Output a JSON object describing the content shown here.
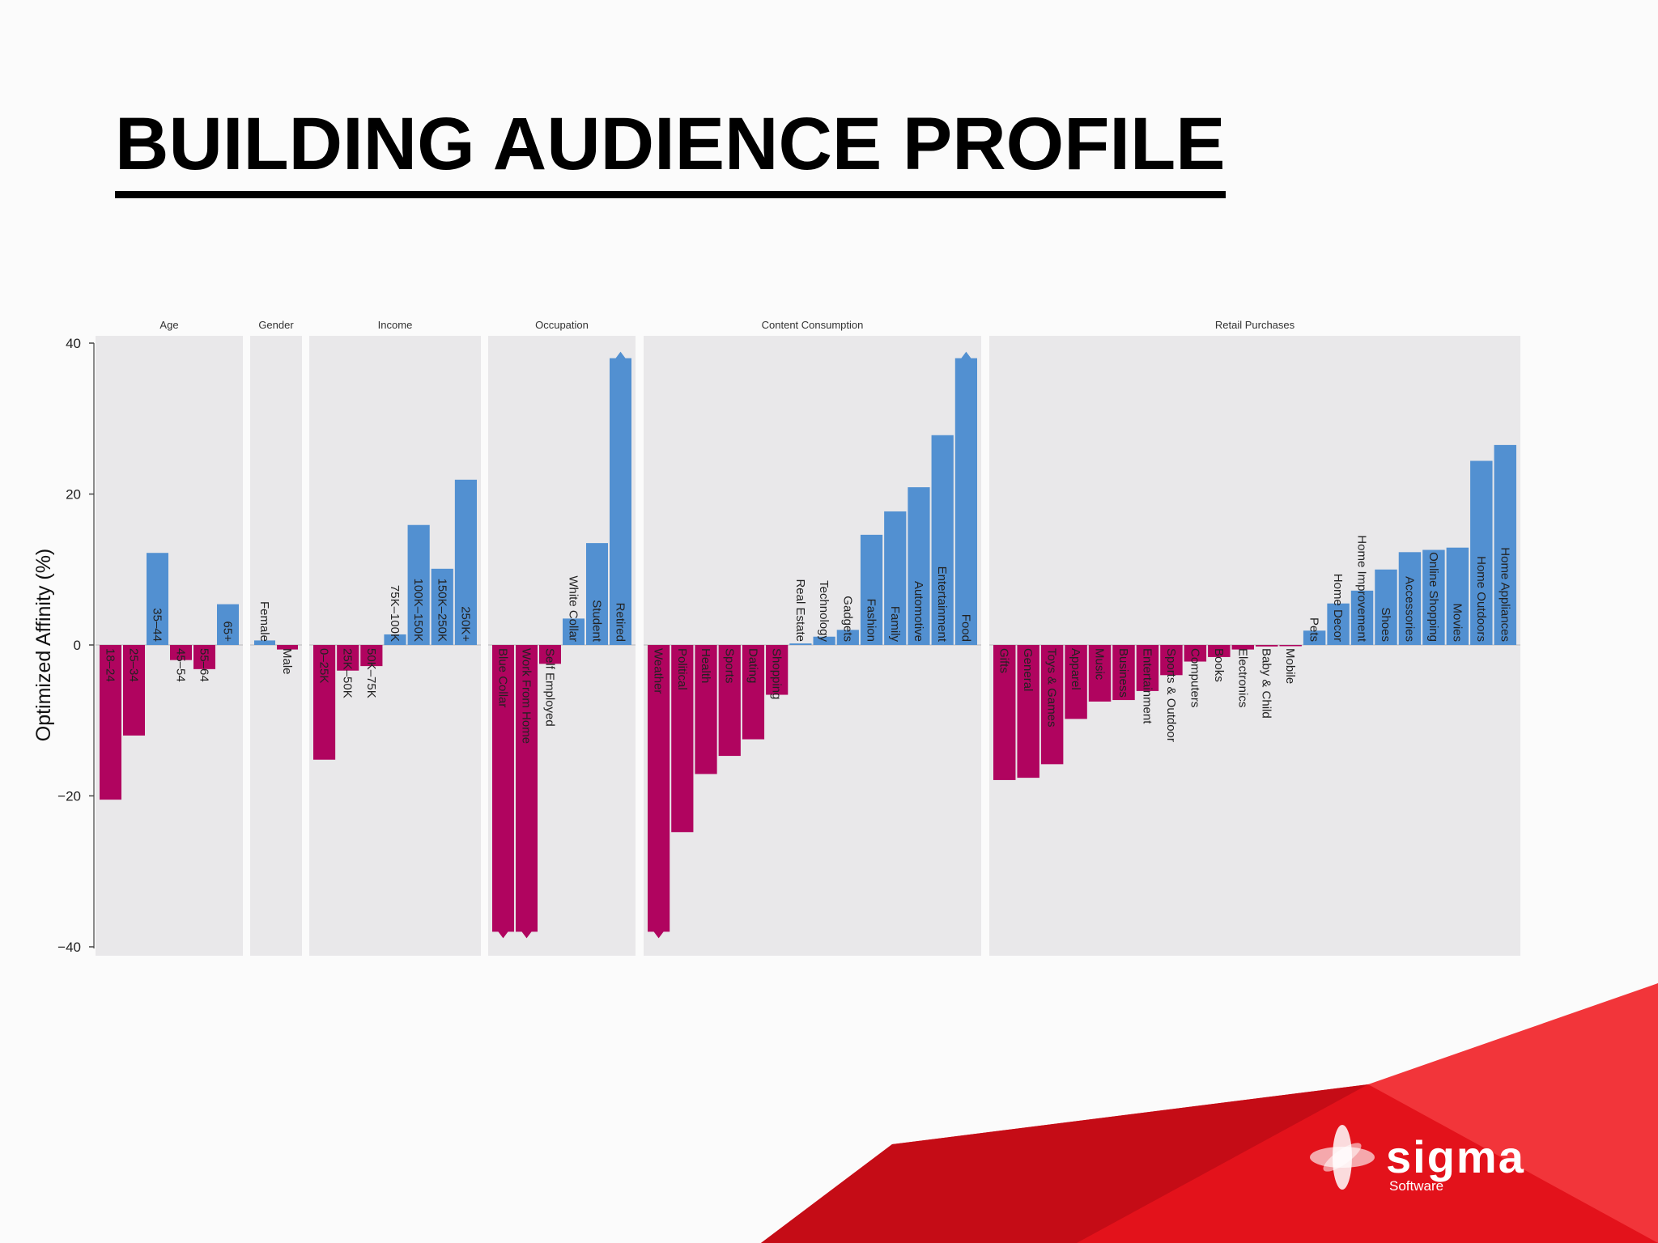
{
  "slide": {
    "title": "BUILDING AUDIENCE PROFILE",
    "logo_text": "sigma",
    "logo_subtext": "Software",
    "colors": {
      "negative": "#b0045f",
      "positive": "#5290d1",
      "panel": "#e9e8ea",
      "accent_red": "#e3121b"
    }
  },
  "chart_data": {
    "type": "bar",
    "ylabel": "Optimized Affinity (%)",
    "ylim": [
      -40,
      40
    ],
    "yticks": [
      40,
      20,
      0,
      -20,
      -40
    ],
    "facets": [
      {
        "name": "Age",
        "categories": [
          "18–24",
          "25–34",
          "35–44",
          "45–54",
          "55–64",
          "65+"
        ],
        "values": [
          -20.5,
          -12,
          12.2,
          -2,
          -3.2,
          5.4
        ]
      },
      {
        "name": "Gender",
        "categories": [
          "Female",
          "Male"
        ],
        "values": [
          0.6,
          -0.6
        ]
      },
      {
        "name": "Income",
        "categories": [
          "0–25K",
          "25K–50K",
          "50K–75K",
          "75K–100K",
          "100K–150K",
          "150K–250K",
          "250K+"
        ],
        "values": [
          -15.2,
          -3.4,
          -2.8,
          1.4,
          15.9,
          10.1,
          21.9
        ]
      },
      {
        "name": "Occupation",
        "categories": [
          "Blue Collar",
          "Work From Home",
          "Self Employed",
          "White Collar",
          "Student",
          "Retired"
        ],
        "values": [
          -38,
          -38,
          -2.5,
          3.5,
          13.5,
          38
        ]
      },
      {
        "name": "Content Consumption",
        "categories": [
          "Weather",
          "Political",
          "Health",
          "Sports",
          "Dating",
          "Shopping",
          "Real Estate",
          "Technology",
          "Gadgets",
          "Fashion",
          "Family",
          "Automotive",
          "Entertainment",
          "Food"
        ],
        "values": [
          -38,
          -24.8,
          -17.1,
          -14.7,
          -12.5,
          -6.6,
          0.2,
          1.1,
          2,
          14.6,
          17.7,
          20.9,
          27.8,
          38
        ]
      },
      {
        "name": "Retail Purchases",
        "categories": [
          "Gifts",
          "General",
          "Toys & Games",
          "Apparel",
          "Music",
          "Business",
          "Entertainment",
          "Sports & Outdoor",
          "Computers",
          "Books",
          "Electronics",
          "Baby & Child",
          "Mobile",
          "Pets",
          "Home Decor",
          "Home Improvement",
          "Shoes",
          "Accessories",
          "Online Shopping",
          "Movies",
          "Home Outdoors",
          "Home Appliances"
        ],
        "values": [
          -17.9,
          -17.6,
          -15.8,
          -9.8,
          -7.5,
          -7.3,
          -6.1,
          -4,
          -2.2,
          -1.6,
          -0.6,
          -0.2,
          -0.1,
          1.9,
          5.5,
          7.2,
          10,
          12.3,
          12.6,
          12.9,
          24.4,
          26.5
        ]
      }
    ]
  }
}
